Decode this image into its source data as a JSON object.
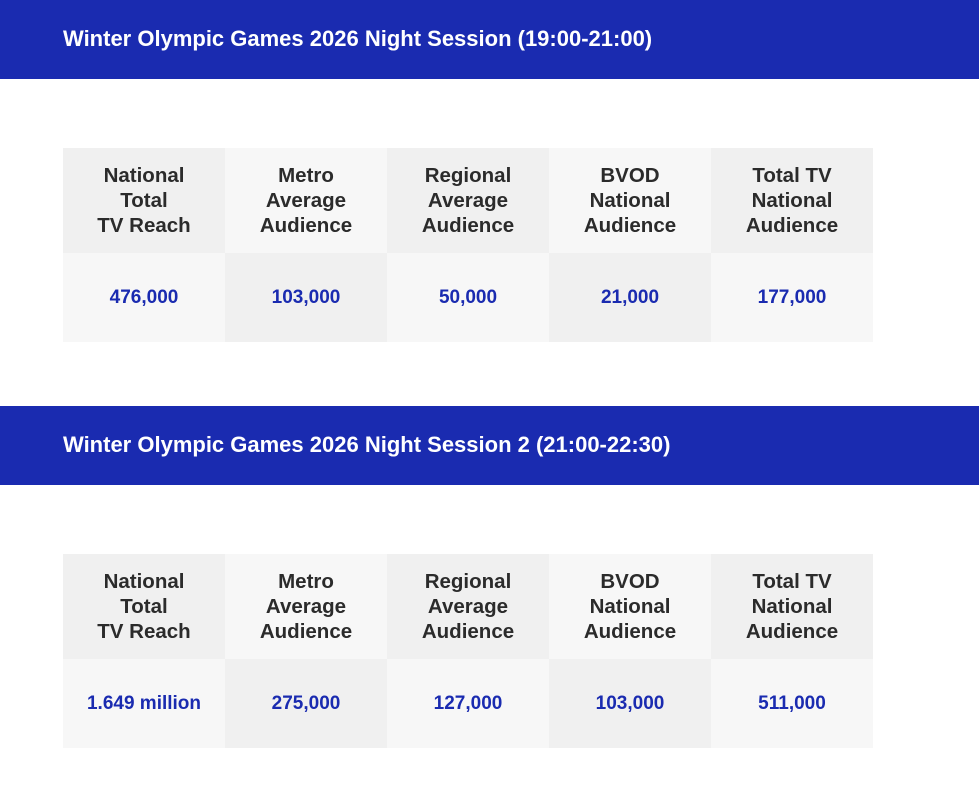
{
  "sections": [
    {
      "title": "Winter Olympic Games 2026 Night Session (19:00-21:00)",
      "headers": [
        "National\nTotal\nTV Reach",
        "Metro\nAverage\nAudience",
        "Regional\nAverage\nAudience",
        "BVOD\nNational\nAudience",
        "Total TV\nNational\nAudience"
      ],
      "values": [
        "476,000",
        "103,000",
        "50,000",
        "21,000",
        "177,000"
      ]
    },
    {
      "title": "Winter Olympic Games 2026 Night Session 2 (21:00-22:30)",
      "headers": [
        "National\nTotal\nTV Reach",
        "Metro\nAverage\nAudience",
        "Regional\nAverage\nAudience",
        "BVOD\nNational\nAudience",
        "Total TV\nNational\nAudience"
      ],
      "values": [
        "1.649 million",
        "275,000",
        "127,000",
        "103,000",
        "511,000"
      ]
    }
  ],
  "colors": {
    "banner": "#1a2bb0",
    "value_text": "#1a2bb0",
    "header_text": "#2b2b2b",
    "cell_light": "#f7f7f7",
    "cell_dark": "#f0f0f0"
  }
}
